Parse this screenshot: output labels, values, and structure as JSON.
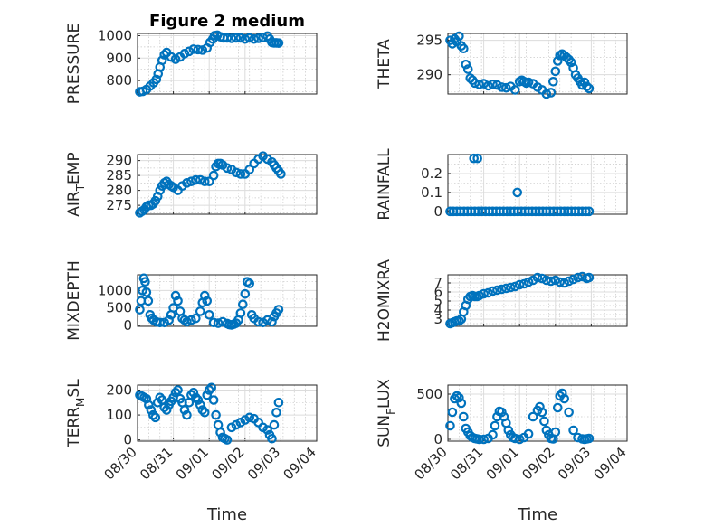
{
  "figure": {
    "title": "Figure 2 medium",
    "marker_color": "#0072BD",
    "x_axis_label": "Time",
    "x_tick_labels": [
      "08/30",
      "08/31",
      "09/01",
      "09/02",
      "09/03",
      "09/04"
    ]
  },
  "chart_data": [
    {
      "id": "pressure",
      "type": "scatter",
      "ylabel": "PRESSURE",
      "ylim": [
        740,
        1010
      ],
      "yticks": [
        800,
        900,
        1000
      ],
      "ytick_labels": [
        "800",
        "900",
        "1000"
      ],
      "xlim": [
        0,
        4
      ],
      "grid": true,
      "title": "Figure 2 medium",
      "x": [
        0.05,
        0.12,
        0.2,
        0.28,
        0.36,
        0.42,
        0.46,
        0.5,
        0.55,
        0.6,
        0.65,
        0.75,
        0.85,
        0.95,
        1.05,
        1.15,
        1.25,
        1.35,
        1.45,
        1.55,
        1.62,
        1.68,
        1.72,
        1.78,
        1.85,
        1.92,
        2.0,
        2.1,
        2.2,
        2.3,
        2.4,
        2.5,
        2.6,
        2.7,
        2.8,
        2.9,
        2.95,
        3.0,
        3.05,
        3.1,
        3.15
      ],
      "y": [
        750,
        752,
        760,
        775,
        790,
        805,
        830,
        860,
        890,
        915,
        925,
        905,
        895,
        905,
        920,
        930,
        940,
        938,
        936,
        945,
        970,
        985,
        1000,
        1002,
        995,
        990,
        990,
        988,
        990,
        990,
        985,
        990,
        985,
        988,
        992,
        998,
        985,
        970,
        968,
        968,
        967
      ]
    },
    {
      "id": "theta",
      "type": "scatter",
      "ylabel": "THETA",
      "ylim": [
        287.2,
        296
      ],
      "yticks": [
        290,
        295
      ],
      "ytick_labels": [
        "290",
        "295"
      ],
      "xlim": [
        0,
        4
      ],
      "grid": true,
      "x": [
        0.05,
        0.1,
        0.15,
        0.2,
        0.25,
        0.3,
        0.35,
        0.4,
        0.45,
        0.5,
        0.55,
        0.6,
        0.7,
        0.8,
        0.9,
        1.0,
        1.1,
        1.2,
        1.3,
        1.4,
        1.5,
        1.6,
        1.65,
        1.7,
        1.75,
        1.8,
        1.9,
        2.0,
        2.1,
        2.2,
        2.3,
        2.35,
        2.4,
        2.45,
        2.5,
        2.55,
        2.6,
        2.65,
        2.7,
        2.75,
        2.8,
        2.85,
        2.9,
        2.95,
        3.0,
        3.05,
        3.1,
        3.15
      ],
      "y": [
        295,
        294.5,
        295.2,
        294.8,
        295.6,
        294.2,
        293.8,
        291.5,
        290.8,
        289.5,
        289.2,
        288.8,
        288.6,
        288.7,
        288.4,
        288.6,
        288.5,
        288.2,
        288.1,
        288.3,
        287.8,
        289.0,
        289.2,
        289.0,
        288.8,
        288.9,
        288.7,
        288.2,
        287.8,
        287.2,
        287.4,
        289.0,
        290.5,
        292.0,
        292.8,
        293.0,
        292.8,
        292.5,
        292.2,
        291.8,
        291.0,
        290.0,
        289.5,
        289.0,
        288.5,
        288.9,
        288.3,
        288.0
      ]
    },
    {
      "id": "air_temp",
      "type": "scatter",
      "ylabel": "AIR_TEMP",
      "ylabel_main": "AIR",
      "ylabel_sub": "T",
      "ylabel_tail": "EMP",
      "ylim": [
        272,
        292
      ],
      "yticks": [
        275,
        280,
        285,
        290
      ],
      "ytick_labels": [
        "275",
        "280",
        "285",
        "290"
      ],
      "xlim": [
        0,
        4
      ],
      "grid": true,
      "x": [
        0.05,
        0.1,
        0.15,
        0.2,
        0.25,
        0.3,
        0.35,
        0.4,
        0.45,
        0.5,
        0.55,
        0.6,
        0.65,
        0.7,
        0.75,
        0.8,
        0.9,
        1.0,
        1.1,
        1.2,
        1.3,
        1.4,
        1.5,
        1.6,
        1.7,
        1.75,
        1.8,
        1.85,
        1.9,
        2.0,
        2.1,
        2.2,
        2.3,
        2.4,
        2.5,
        2.6,
        2.7,
        2.8,
        2.9,
        3.0,
        3.05,
        3.1,
        3.15,
        3.2
      ],
      "y": [
        272.5,
        273,
        273.5,
        274.5,
        275,
        275,
        275.5,
        276.5,
        278,
        280,
        281.5,
        282.5,
        283,
        282,
        281.5,
        281,
        280,
        281.5,
        282.5,
        283,
        283.5,
        283.5,
        283,
        283,
        285,
        288,
        289,
        289,
        288.5,
        287.5,
        287,
        286,
        285.5,
        285.5,
        287,
        289,
        290.5,
        291.5,
        290.5,
        289.5,
        288.5,
        287.5,
        286.5,
        285.5
      ]
    },
    {
      "id": "rainfall",
      "type": "scatter",
      "ylabel": "RAINFALL",
      "ylim": [
        -0.015,
        0.3
      ],
      "yticks": [
        0,
        0.1,
        0.2
      ],
      "ytick_labels": [
        "0",
        "0.1",
        "0.2"
      ],
      "xlim": [
        0,
        4
      ],
      "grid": true,
      "x": [
        0.05,
        0.12,
        0.2,
        0.28,
        0.36,
        0.44,
        0.52,
        0.6,
        0.68,
        0.76,
        0.84,
        0.92,
        1.0,
        1.08,
        1.16,
        1.24,
        1.32,
        1.4,
        1.48,
        1.56,
        1.64,
        1.72,
        1.8,
        1.88,
        1.96,
        2.04,
        2.12,
        2.2,
        2.28,
        2.36,
        2.44,
        2.52,
        2.6,
        2.68,
        2.76,
        2.84,
        2.92,
        3.0,
        3.08,
        3.15,
        0.58,
        0.66,
        1.55
      ],
      "y": [
        0,
        0,
        0,
        0,
        0,
        0,
        0,
        0,
        0,
        0,
        0,
        0,
        0,
        0,
        0,
        0,
        0,
        0,
        0,
        0,
        0,
        0,
        0,
        0,
        0,
        0,
        0,
        0,
        0,
        0,
        0,
        0,
        0,
        0,
        0,
        0,
        0,
        0,
        0,
        0,
        0.28,
        0.28,
        0.1
      ]
    },
    {
      "id": "mixdepth",
      "type": "scatter",
      "ylabel": "MIXDEPTH",
      "ylim": [
        -30,
        1450
      ],
      "yticks": [
        0,
        500,
        1000
      ],
      "ytick_labels": [
        "0",
        "500",
        "1000"
      ],
      "xlim": [
        0,
        4
      ],
      "grid": true,
      "x": [
        0.05,
        0.08,
        0.11,
        0.14,
        0.17,
        0.2,
        0.24,
        0.28,
        0.32,
        0.36,
        0.42,
        0.5,
        0.6,
        0.7,
        0.75,
        0.8,
        0.85,
        0.9,
        0.95,
        1.0,
        1.05,
        1.1,
        1.2,
        1.3,
        1.4,
        1.45,
        1.5,
        1.55,
        1.6,
        1.7,
        1.8,
        1.9,
        2.0,
        2.05,
        2.1,
        2.15,
        2.2,
        2.25,
        2.3,
        2.35,
        2.4,
        2.45,
        2.5,
        2.55,
        2.6,
        2.7,
        2.8,
        2.9,
        3.0,
        3.05,
        3.1,
        3.15
      ],
      "y": [
        450,
        700,
        1000,
        1350,
        1250,
        950,
        700,
        300,
        200,
        150,
        100,
        80,
        80,
        150,
        300,
        500,
        850,
        700,
        400,
        200,
        150,
        100,
        150,
        200,
        400,
        650,
        850,
        700,
        300,
        80,
        60,
        100,
        50,
        20,
        10,
        30,
        60,
        150,
        350,
        600,
        900,
        1250,
        1200,
        300,
        200,
        100,
        80,
        150,
        100,
        250,
        350,
        450
      ]
    },
    {
      "id": "h2omixra",
      "type": "scatter",
      "ylabel": "H2OMIXRA",
      "ylim": [
        2.2,
        7.9
      ],
      "yticks": [
        3,
        4,
        5,
        6,
        7
      ],
      "ytick_labels": [
        "3",
        "4",
        "5",
        "6",
        "7"
      ],
      "xlim": [
        0,
        4
      ],
      "grid": true,
      "x": [
        0.05,
        0.1,
        0.15,
        0.2,
        0.25,
        0.3,
        0.35,
        0.4,
        0.45,
        0.5,
        0.55,
        0.6,
        0.65,
        0.7,
        0.8,
        0.9,
        1.0,
        1.1,
        1.2,
        1.3,
        1.4,
        1.5,
        1.6,
        1.7,
        1.8,
        1.9,
        2.0,
        2.1,
        2.2,
        2.3,
        2.4,
        2.5,
        2.6,
        2.7,
        2.8,
        2.9,
        3.0,
        3.1,
        3.15
      ],
      "y": [
        2.5,
        2.6,
        2.7,
        2.8,
        2.8,
        3.0,
        3.8,
        4.5,
        5.2,
        5.5,
        5.6,
        5.5,
        5.5,
        5.6,
        5.8,
        5.9,
        6.1,
        6.2,
        6.3,
        6.4,
        6.5,
        6.6,
        6.8,
        6.9,
        7.1,
        7.3,
        7.6,
        7.5,
        7.3,
        7.2,
        7.3,
        7.1,
        7.0,
        7.2,
        7.4,
        7.6,
        7.7,
        7.5,
        7.6
      ]
    },
    {
      "id": "terr_msl",
      "type": "scatter",
      "ylabel": "TERR_MSL",
      "ylabel_main": "TERR",
      "ylabel_sub": "M",
      "ylabel_tail": "SL",
      "ylim": [
        -5,
        220
      ],
      "yticks": [
        0,
        100,
        200
      ],
      "ytick_labels": [
        "0",
        "100",
        "200"
      ],
      "xlim": [
        0,
        4
      ],
      "grid": true,
      "x": [
        0.05,
        0.1,
        0.15,
        0.2,
        0.25,
        0.3,
        0.35,
        0.4,
        0.45,
        0.5,
        0.55,
        0.6,
        0.65,
        0.7,
        0.75,
        0.8,
        0.85,
        0.9,
        0.95,
        1.0,
        1.05,
        1.1,
        1.15,
        1.2,
        1.25,
        1.3,
        1.35,
        1.4,
        1.45,
        1.5,
        1.55,
        1.6,
        1.65,
        1.7,
        1.75,
        1.8,
        1.85,
        1.9,
        1.95,
        2.0,
        2.1,
        2.2,
        2.3,
        2.4,
        2.5,
        2.6,
        2.7,
        2.8,
        2.9,
        2.95,
        3.0,
        3.05,
        3.1,
        3.15
      ],
      "y": [
        180,
        175,
        170,
        165,
        140,
        120,
        100,
        90,
        150,
        170,
        160,
        130,
        120,
        140,
        155,
        170,
        190,
        200,
        165,
        150,
        120,
        100,
        150,
        180,
        190,
        170,
        160,
        140,
        120,
        110,
        180,
        200,
        210,
        160,
        100,
        60,
        30,
        10,
        5,
        0,
        50,
        60,
        70,
        80,
        90,
        85,
        70,
        50,
        40,
        20,
        5,
        60,
        110,
        150
      ]
    },
    {
      "id": "sun_flux",
      "type": "scatter",
      "ylabel": "SUN_FLUX",
      "ylabel_main": "SUN",
      "ylabel_sub": "F",
      "ylabel_tail": "LUX",
      "ylim": [
        -20,
        600
      ],
      "yticks": [
        0,
        500
      ],
      "ytick_labels": [
        "0",
        "500"
      ],
      "xlim": [
        0,
        4
      ],
      "grid": true,
      "x": [
        0.05,
        0.1,
        0.15,
        0.2,
        0.25,
        0.3,
        0.35,
        0.4,
        0.45,
        0.5,
        0.55,
        0.6,
        0.65,
        0.7,
        0.8,
        0.9,
        1.0,
        1.05,
        1.1,
        1.15,
        1.2,
        1.25,
        1.3,
        1.35,
        1.4,
        1.45,
        1.5,
        1.6,
        1.7,
        1.8,
        1.9,
        2.0,
        2.05,
        2.1,
        2.15,
        2.2,
        2.25,
        2.3,
        2.35,
        2.4,
        2.45,
        2.5,
        2.55,
        2.6,
        2.7,
        2.8,
        2.9,
        3.0,
        3.05,
        3.1,
        3.15
      ],
      "y": [
        150,
        300,
        450,
        480,
        460,
        400,
        250,
        120,
        80,
        40,
        20,
        10,
        5,
        0,
        0,
        10,
        50,
        150,
        250,
        310,
        300,
        250,
        180,
        100,
        50,
        20,
        10,
        0,
        20,
        60,
        250,
        320,
        360,
        300,
        200,
        100,
        50,
        10,
        5,
        80,
        350,
        480,
        510,
        450,
        300,
        100,
        20,
        5,
        0,
        5,
        10
      ]
    }
  ]
}
